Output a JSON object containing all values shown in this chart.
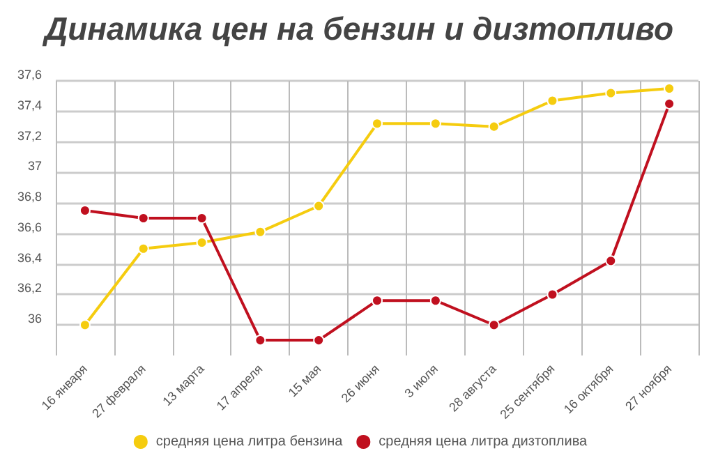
{
  "chart_data": {
    "type": "line",
    "title": "Динамика цен на бензин и дизтопливо",
    "categories": [
      "16 января",
      "27 февраля",
      "13 марта",
      "17 апреля",
      "15 мая",
      "26 июня",
      "3 июля",
      "28 августа",
      "25 сентября",
      "16 октября",
      "27 ноября"
    ],
    "series": [
      {
        "name": "средняя цена литра бензина",
        "color": "#f5cc0f",
        "values": [
          36.0,
          36.5,
          36.54,
          36.61,
          36.78,
          37.32,
          37.32,
          37.3,
          37.47,
          37.52,
          37.55
        ]
      },
      {
        "name": "средняя цена литра дизтоплива",
        "color": "#c0101f",
        "values": [
          36.75,
          36.7,
          36.7,
          35.9,
          35.9,
          36.16,
          36.16,
          36.0,
          36.2,
          36.42,
          37.45
        ]
      }
    ],
    "ylim": [
      35.8,
      37.6
    ],
    "yticks": [
      {
        "value": 36,
        "label": "36"
      },
      {
        "value": 36.2,
        "label": "36,2"
      },
      {
        "value": 36.4,
        "label": "36,4"
      },
      {
        "value": 36.6,
        "label": "36,6"
      },
      {
        "value": 36.8,
        "label": "36,8"
      },
      {
        "value": 37,
        "label": "37"
      },
      {
        "value": 37.2,
        "label": "37,2"
      },
      {
        "value": 37.4,
        "label": "37,4"
      },
      {
        "value": 37.6,
        "label": "37,6"
      }
    ],
    "grid": true,
    "legend": "bottom",
    "marker": "circle",
    "line_style": "solid"
  }
}
